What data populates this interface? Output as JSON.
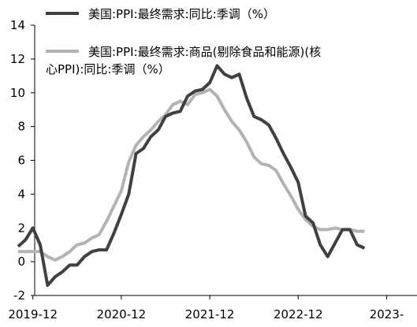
{
  "chart_data": {
    "type": "line",
    "title": "",
    "xlabel": "",
    "ylabel": "",
    "ylim": [
      -2,
      14
    ],
    "y_ticks": [
      "-2",
      "0",
      "2",
      "4",
      "6",
      "8",
      "10",
      "12",
      "14"
    ],
    "y_tick_values": [
      -2,
      0,
      2,
      4,
      6,
      8,
      10,
      12,
      14
    ],
    "x_tick_labels": [
      "2019-12",
      "2020-12",
      "2021-12",
      "2022-12",
      "2023-"
    ],
    "grid": false,
    "legend_position": "top-left",
    "x": [
      "2019-10",
      "2019-11",
      "2019-12",
      "2020-01",
      "2020-02",
      "2020-03",
      "2020-04",
      "2020-05",
      "2020-06",
      "2020-07",
      "2020-08",
      "2020-09",
      "2020-10",
      "2020-11",
      "2020-12",
      "2021-01",
      "2021-02",
      "2021-03",
      "2021-04",
      "2021-05",
      "2021-06",
      "2021-07",
      "2021-08",
      "2021-09",
      "2021-10",
      "2021-11",
      "2021-12",
      "2022-01",
      "2022-02",
      "2022-03",
      "2022-04",
      "2022-05",
      "2022-06",
      "2022-07",
      "2022-08",
      "2022-09",
      "2022-10",
      "2022-11",
      "2022-12",
      "2023-01",
      "2023-02",
      "2023-03",
      "2023-04",
      "2023-05",
      "2023-06",
      "2023-07",
      "2023-08",
      "2023-09"
    ],
    "series": [
      {
        "name": "美国:PPI:最终需求:同比:季调（%）",
        "color": "#404040",
        "values": [
          0.9,
          1.3,
          2.0,
          1.0,
          -1.4,
          -0.9,
          -0.6,
          -0.2,
          -0.2,
          0.3,
          0.6,
          0.7,
          0.7,
          1.7,
          2.8,
          4.0,
          6.4,
          6.7,
          7.4,
          7.8,
          8.6,
          8.8,
          8.9,
          9.8,
          10.1,
          10.2,
          10.6,
          11.6,
          11.1,
          10.9,
          11.1,
          9.7,
          8.6,
          8.4,
          8.1,
          7.3,
          6.4,
          5.6,
          4.7,
          2.7,
          2.3,
          1.0,
          0.3,
          1.1,
          1.9,
          1.9,
          1.0,
          0.8
        ],
        "stroke_width": 4
      },
      {
        "name_line1": "美国:PPI:最终需求:商品(剔除食品和能源)(核",
        "name_line2": "心PPI):同比:季调（%）",
        "color": "#b3b3b3",
        "values": [
          0.6,
          0.6,
          0.6,
          0.6,
          0.3,
          0.1,
          0.3,
          0.6,
          1.0,
          1.1,
          1.4,
          1.6,
          2.4,
          3.3,
          4.2,
          5.9,
          6.9,
          7.4,
          7.8,
          8.3,
          8.7,
          9.3,
          9.5,
          9.3,
          9.9,
          10.0,
          10.2,
          9.8,
          9.0,
          8.3,
          7.8,
          7.1,
          6.2,
          5.8,
          5.7,
          5.4,
          4.6,
          3.9,
          3.1,
          2.5,
          2.1,
          1.9,
          1.9,
          2.0,
          1.9,
          1.9,
          1.8,
          1.8
        ],
        "stroke_width": 4
      }
    ]
  }
}
